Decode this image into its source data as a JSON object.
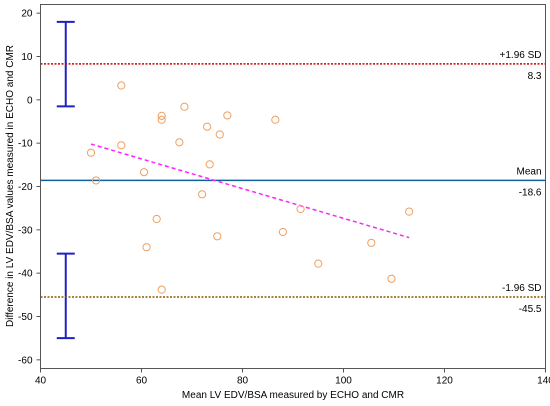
{
  "chart_data": {
    "type": "scatter",
    "title": "",
    "xlabel": "Mean LV EDV/BSA measured by ECHO and CMR",
    "ylabel": "Difference in LV EDV/BSA values measured in ECHO and CMR",
    "xlim": [
      40,
      140
    ],
    "ylim": [
      -62,
      22
    ],
    "xticks": [
      40,
      60,
      80,
      100,
      120,
      140
    ],
    "yticks": [
      20,
      10,
      0,
      -10,
      -20,
      -30,
      -40,
      -50,
      -60
    ],
    "grid": false,
    "points": {
      "x": [
        56.0,
        68.5,
        77.0,
        64.0,
        64.0,
        86.5,
        73.0,
        75.5,
        56.0,
        67.5,
        50.0,
        60.5,
        73.5,
        51.0,
        72.0,
        91.5,
        113.0,
        63.0,
        88.0,
        61.0,
        75.0,
        105.5,
        95.0,
        109.5,
        64.0
      ],
      "y": [
        3.3,
        -1.6,
        -3.6,
        -3.7,
        -4.6,
        -4.6,
        -6.2,
        -8.0,
        -10.5,
        -9.8,
        -12.2,
        -16.7,
        -14.9,
        -18.6,
        -21.8,
        -25.2,
        -25.8,
        -27.5,
        -30.5,
        -34.0,
        -31.5,
        -33.0,
        -37.8,
        -41.3,
        -43.8
      ],
      "color": "#f0a060"
    },
    "reference_lines": [
      {
        "label": "+1.96 SD",
        "value": 8.3,
        "value_label": "8.3",
        "color": "#cc0000",
        "style": "dotted"
      },
      {
        "label": "Mean",
        "value": -18.6,
        "value_label": "-18.6",
        "color": "#1060a0",
        "style": "solid"
      },
      {
        "label": "-1.96 SD",
        "value": -45.5,
        "value_label": "-45.5",
        "color": "#8a5a00",
        "style": "dotted"
      }
    ],
    "regression_line": {
      "x": [
        50,
        113
      ],
      "y": [
        -10.2,
        -31.8
      ],
      "color": "#ff22ff",
      "style": "dashed"
    },
    "confidence_intervals": [
      {
        "x": 45,
        "low": -1.5,
        "high": 18,
        "color": "#2020c0"
      },
      {
        "x": 45,
        "low": -55,
        "high": -35.5,
        "color": "#2020c0"
      }
    ]
  }
}
